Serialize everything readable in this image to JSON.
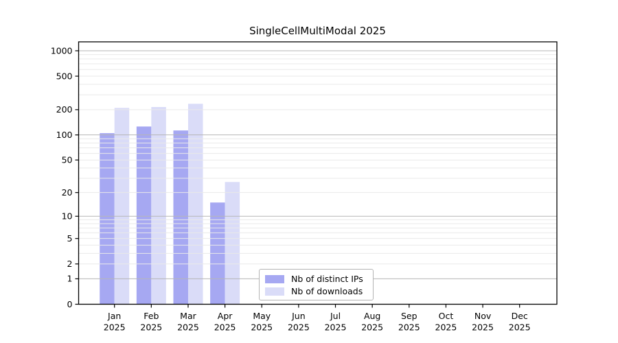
{
  "chart_data": {
    "type": "bar",
    "title": "SingleCellMultiModal 2025",
    "categories": [
      "Jan 2025",
      "Feb 2025",
      "Mar 2025",
      "Apr 2025",
      "May 2025",
      "Jun 2025",
      "Jul 2025",
      "Aug 2025",
      "Sep 2025",
      "Oct 2025",
      "Nov 2025",
      "Dec 2025"
    ],
    "series": [
      {
        "name": "Nb of distinct IPs",
        "color": "#a6a8f2",
        "values": [
          105,
          126,
          113,
          15,
          null,
          null,
          null,
          null,
          null,
          null,
          null,
          null
        ]
      },
      {
        "name": "Nb of downloads",
        "color": "#dadcf8",
        "values": [
          210,
          215,
          235,
          27,
          null,
          null,
          null,
          null,
          null,
          null,
          null,
          null
        ]
      }
    ],
    "xlabel": "",
    "ylabel": "",
    "yscale": "log1p",
    "ylim": [
      0,
      1280
    ],
    "yticks": [
      0,
      1,
      2,
      5,
      10,
      20,
      50,
      100,
      200,
      500,
      1000
    ],
    "grid": true,
    "major_gridlines": [
      1,
      10,
      100,
      1000
    ],
    "minor_gridlines": [
      2,
      3,
      4,
      5,
      6,
      7,
      8,
      9,
      20,
      30,
      40,
      50,
      60,
      70,
      80,
      90,
      200,
      300,
      400,
      500,
      600,
      700,
      800,
      900
    ],
    "legend_position": "lower-center-inside"
  },
  "colors": {
    "bar_distinct_ips": "#a6a8f2",
    "bar_downloads": "#dadcf8",
    "grid_major": "#b6b6b6",
    "grid_minor": "#e9e9e9",
    "axis": "#000000",
    "text": "#000000",
    "legend_border": "#b4b4b4",
    "background": "#ffffff"
  }
}
